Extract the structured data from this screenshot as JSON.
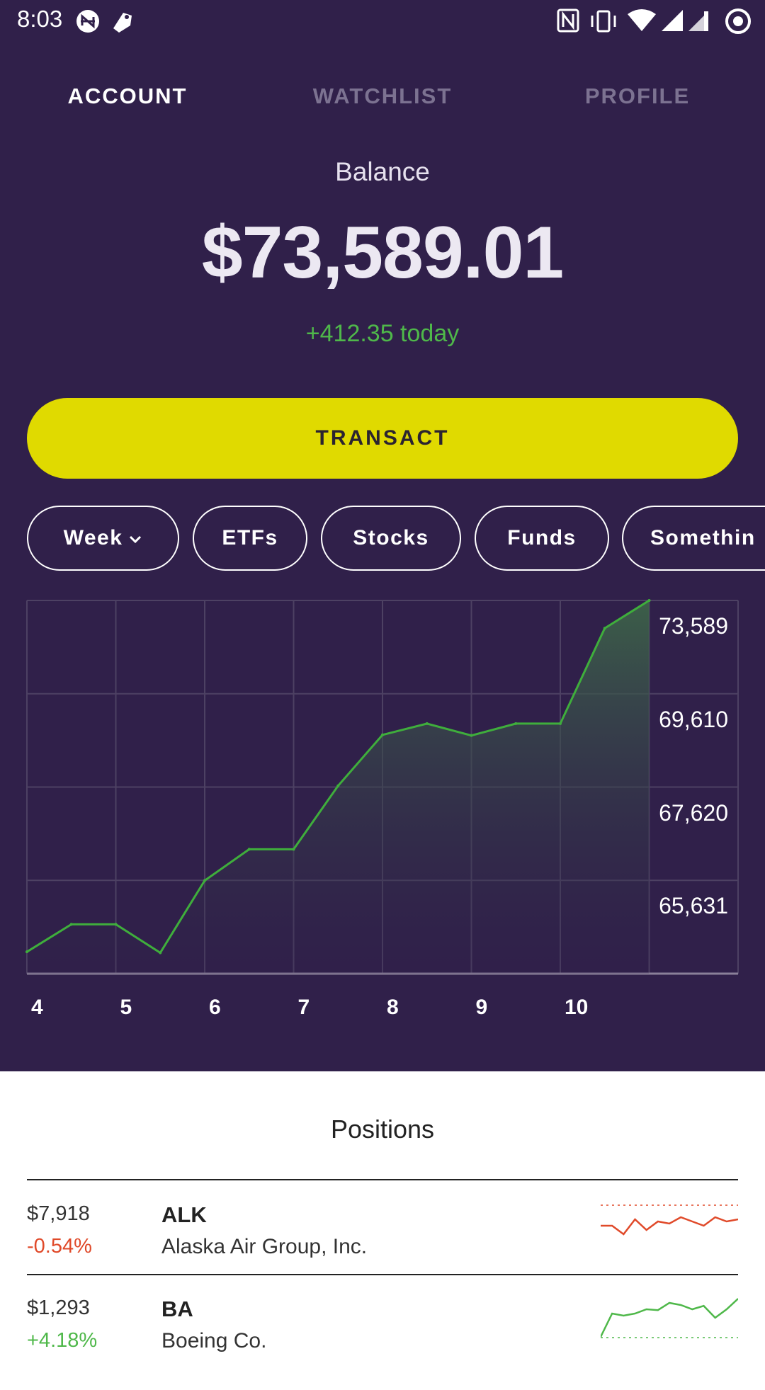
{
  "status_bar": {
    "time": "8:03",
    "icons_left": [
      "nfc-coin-icon",
      "tag-icon"
    ],
    "icons_right": [
      "nfc-icon",
      "vibrate-icon",
      "wifi-icon",
      "signal-icon",
      "signal-icon-2",
      "sync-icon"
    ]
  },
  "tabs": [
    {
      "label": "ACCOUNT",
      "active": true
    },
    {
      "label": "WATCHLIST",
      "active": false
    },
    {
      "label": "PROFILE",
      "active": false
    }
  ],
  "balance": {
    "label": "Balance",
    "amount": "$73,589.01",
    "change": "+412.35 today"
  },
  "transact_label": "TRANSACT",
  "filters": {
    "period": "Week",
    "chips": [
      "ETFs",
      "Stocks",
      "Funds",
      "Somethin"
    ]
  },
  "colors": {
    "header_bg": "#30204a",
    "accent_yellow": "#e0da00",
    "positive": "#4fb84a",
    "negative": "#e04a2a"
  },
  "chart_data": {
    "type": "area",
    "x_tick_labels": [
      "4",
      "5",
      "6",
      "7",
      "8",
      "9",
      "10"
    ],
    "y_tick_labels": [
      "73,589",
      "69,610",
      "67,620",
      "65,631"
    ],
    "y_ticks": [
      73589,
      69610,
      67620,
      65631
    ],
    "ylim": [
      61652,
      73589
    ],
    "grid": true,
    "series": [
      {
        "values": [
          62350,
          63230,
          63230,
          62320,
          64630,
          65630,
          65630,
          67660,
          69290,
          69650,
          69270,
          69650,
          69650,
          72700,
          73589
        ]
      }
    ]
  },
  "positions": {
    "title": "Positions",
    "items": [
      {
        "value": "$7,918",
        "change": "-0.54%",
        "symbol": "ALK",
        "name": "Alaska Air Group, Inc.",
        "trend": "down",
        "spark": [
          0.35,
          0.35,
          0.15,
          0.5,
          0.25,
          0.45,
          0.4,
          0.55,
          0.45,
          0.35,
          0.55,
          0.45,
          0.5
        ]
      },
      {
        "value": "$1,293",
        "change": "+4.18%",
        "symbol": "BA",
        "name": "Boeing Co.",
        "trend": "up",
        "spark": [
          0.05,
          0.6,
          0.55,
          0.6,
          0.7,
          0.68,
          0.85,
          0.8,
          0.7,
          0.78,
          0.5,
          0.7,
          0.95
        ]
      }
    ]
  }
}
